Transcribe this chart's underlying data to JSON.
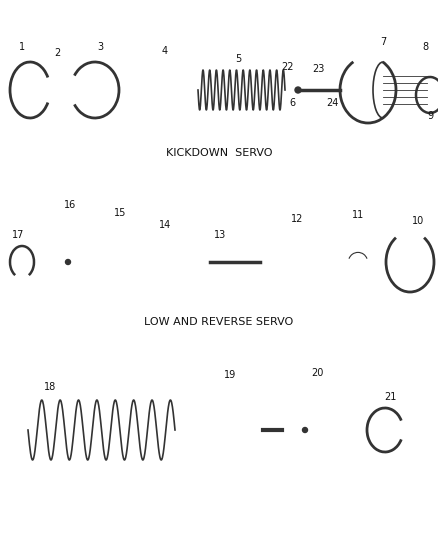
{
  "bg_color": "#ffffff",
  "line_color": "#333333",
  "text_color": "#111111",
  "section1_label": "KICKDOWN  SERVO",
  "section2_label": "LOW AND REVERSE SERVO",
  "fig_width": 4.39,
  "fig_height": 5.33,
  "dpi": 100
}
